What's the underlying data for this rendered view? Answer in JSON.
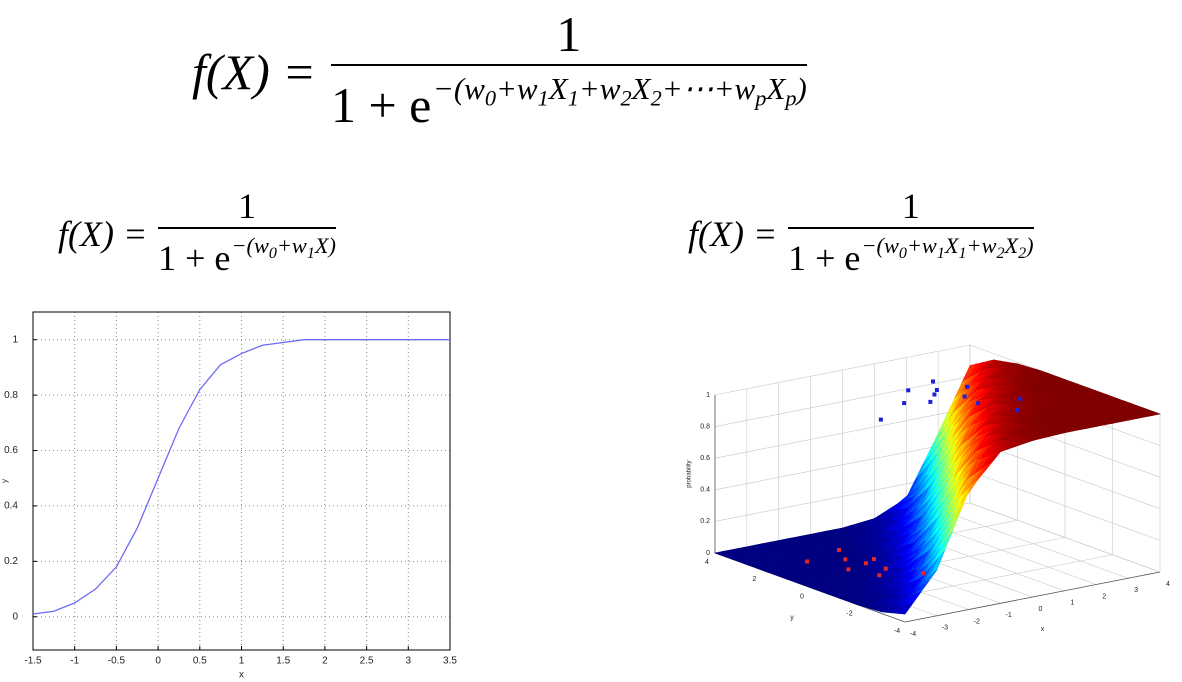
{
  "formulas": [
    {
      "lhs": "f(X) =",
      "numerator": "1",
      "base": "1 + e",
      "exponent": [
        [
          "−(w",
          "0"
        ],
        [
          "+w",
          "1"
        ],
        [
          "X",
          "1"
        ],
        [
          "+w",
          "2"
        ],
        [
          "X",
          "2"
        ],
        [
          "+⋯+w",
          "p"
        ],
        [
          "X",
          "p"
        ],
        [
          ")"
        ]
      ]
    },
    {
      "lhs": "f(X) =",
      "numerator": "1",
      "base": "1 + e",
      "exponent": [
        [
          "−(w",
          "0"
        ],
        [
          "+w",
          "1"
        ],
        [
          "X)"
        ]
      ]
    },
    {
      "lhs": "f(X) =",
      "numerator": "1",
      "base": "1 + e",
      "exponent": [
        [
          "−(w",
          "0"
        ],
        [
          "+w",
          "1"
        ],
        [
          "X",
          "1"
        ],
        [
          "+w",
          "2"
        ],
        [
          "X",
          "2"
        ],
        [
          ")"
        ]
      ]
    }
  ],
  "chart_data": [
    {
      "type": "line",
      "xlabel": "x",
      "ylabel": "y",
      "color": "#6b6bf5",
      "x": [
        -1.5,
        -1.25,
        -1,
        -0.75,
        -0.5,
        -0.25,
        0,
        0.25,
        0.5,
        0.75,
        1,
        1.25,
        1.5,
        1.75,
        2,
        2.25,
        2.5,
        2.75,
        3,
        3.25,
        3.5
      ],
      "values": [
        0.01,
        0.02,
        0.05,
        0.1,
        0.18,
        0.32,
        0.5,
        0.68,
        0.82,
        0.91,
        0.95,
        0.98,
        0.99,
        1,
        1,
        1,
        1,
        1,
        1,
        1,
        1
      ],
      "xlim": [
        -1.5,
        3.5
      ],
      "ylim": [
        -0.12,
        1.1
      ],
      "xticks": [
        -1.5,
        -1,
        -0.5,
        0,
        0.5,
        1,
        1.5,
        2,
        2.5,
        3,
        3.5
      ],
      "yticks": [
        0,
        0.2,
        0.4,
        0.6,
        0.8,
        1
      ],
      "grid": true
    },
    {
      "type": "surface3d",
      "xlabel": "x",
      "ylabel": "y",
      "zlabel": "probability",
      "colormap": "jet",
      "grid": true,
      "x": [
        -4,
        -3,
        -2,
        -1,
        0,
        1,
        2,
        3,
        4
      ],
      "y": [
        -4,
        -3,
        -2,
        -1,
        0,
        1,
        2,
        3,
        4
      ],
      "z": [
        [
          0.05,
          0.29,
          0.75,
          0.96,
          0.99,
          1,
          1,
          1,
          1
        ],
        [
          0.01,
          0.09,
          0.43,
          0.85,
          0.98,
          1,
          1,
          1,
          1
        ],
        [
          0,
          0.02,
          0.15,
          0.57,
          0.91,
          0.99,
          1,
          1,
          1
        ],
        [
          0,
          0.01,
          0.04,
          0.25,
          0.71,
          0.95,
          0.99,
          1,
          1
        ],
        [
          0,
          0,
          0.01,
          0.08,
          0.38,
          0.82,
          0.97,
          1,
          1
        ],
        [
          0,
          0,
          0,
          0.02,
          0.13,
          0.52,
          0.89,
          0.98,
          1
        ],
        [
          0,
          0,
          0,
          0,
          0.04,
          0.21,
          0.67,
          0.94,
          0.99
        ],
        [
          0,
          0,
          0,
          0,
          0.01,
          0.06,
          0.33,
          0.79,
          0.96
        ],
        [
          0,
          0,
          0,
          0,
          0,
          0.02,
          0.11,
          0.48,
          0.87
        ]
      ],
      "xlim": [
        -4,
        4
      ],
      "ylim": [
        -4,
        4
      ],
      "zlim": [
        0,
        1
      ],
      "xticks": [
        -4,
        -3,
        -2,
        -1,
        0,
        1,
        2,
        3,
        4
      ],
      "yticks": [
        -4,
        -2,
        0,
        2,
        4
      ],
      "zticks": [
        0,
        0.2,
        0.4,
        0.6,
        0.8,
        1
      ],
      "points": [
        {
          "color": "#2020d8",
          "x": [
            0.8,
            1.3,
            -2.0,
            0.2,
            0.5,
            1.0,
            1.6,
            0.9,
            -0.6,
            2.0,
            1.2,
            0.0
          ],
          "y": [
            1.1,
            -1.6,
            -0.3,
            1.5,
            0.8,
            0.2,
            0.9,
            -0.5,
            0.6,
            -0.8,
            1.8,
            0.3
          ],
          "z": [
            1,
            1,
            1,
            1,
            1,
            1,
            1,
            1,
            1,
            1,
            1,
            1
          ]
        },
        {
          "color": "#e02828",
          "x": [
            -1.3,
            -1.9,
            -1.5,
            -1.7,
            -1.1,
            -2.2,
            -1.4,
            -0.9,
            -2.6
          ],
          "y": [
            2.4,
            -0.1,
            1.0,
            1.6,
            1.2,
            0.8,
            0.3,
            -0.6,
            2.0
          ],
          "z": [
            0,
            0,
            0,
            0,
            0,
            0,
            0,
            0,
            0
          ]
        }
      ]
    }
  ]
}
